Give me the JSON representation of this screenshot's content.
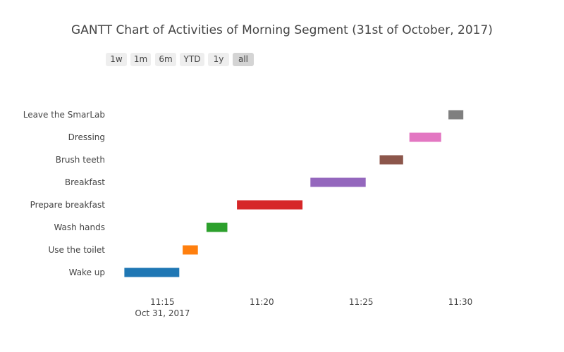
{
  "range_selector": {
    "buttons": [
      {
        "label": "1w",
        "active": false
      },
      {
        "label": "1m",
        "active": false
      },
      {
        "label": "6m",
        "active": false
      },
      {
        "label": "YTD",
        "active": false
      },
      {
        "label": "1y",
        "active": false
      },
      {
        "label": "all",
        "active": true
      }
    ]
  },
  "chart_data": {
    "type": "gantt",
    "title": "GANTT Chart of Activities of Morning Segment (31st of October, 2017)",
    "date_label": "Oct 31, 2017",
    "xlim": [
      "11:12:30",
      "11:31:40"
    ],
    "x_ticks": [
      "11:15",
      "11:20",
      "11:25",
      "11:30"
    ],
    "tasks": [
      {
        "name": "Wake up",
        "start": "11:13:05",
        "end": "11:15:51",
        "color": "#1f77b4"
      },
      {
        "name": "Use the toilet",
        "start": "11:16:01",
        "end": "11:16:47",
        "color": "#ff7f0e"
      },
      {
        "name": "Wash hands",
        "start": "11:17:13",
        "end": "11:18:16",
        "color": "#2ca02c"
      },
      {
        "name": "Prepare breakfast",
        "start": "11:18:45",
        "end": "11:22:03",
        "color": "#d62728"
      },
      {
        "name": "Breakfast",
        "start": "11:22:27",
        "end": "11:25:14",
        "color": "#9467bd"
      },
      {
        "name": "Brush teeth",
        "start": "11:25:56",
        "end": "11:27:07",
        "color": "#8c564b"
      },
      {
        "name": "Dressing",
        "start": "11:27:26",
        "end": "11:29:02",
        "color": "#e377c2"
      },
      {
        "name": "Leave the SmarLab",
        "start": "11:29:24",
        "end": "11:30:09",
        "color": "#7f7f7f"
      }
    ]
  }
}
